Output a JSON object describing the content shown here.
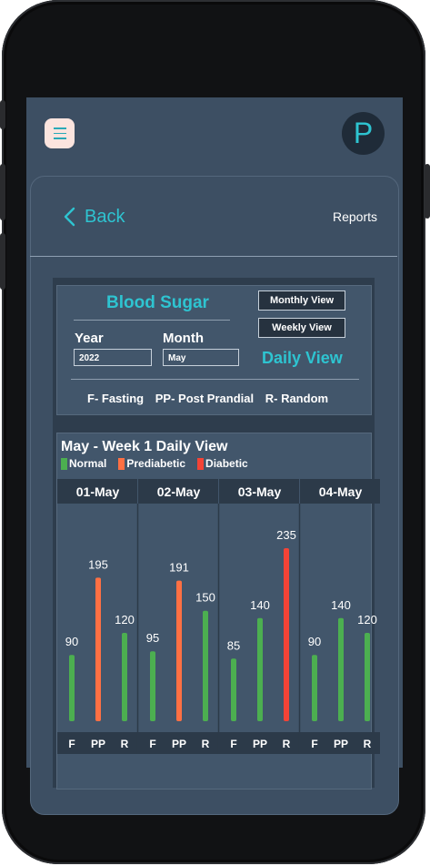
{
  "header": {
    "avatar_letter": "P"
  },
  "nav": {
    "back_label": "Back",
    "reports_label": "Reports"
  },
  "blood_sugar": {
    "title": "Blood Sugar",
    "year_label": "Year",
    "year_value": "2022",
    "month_label": "Month",
    "month_value": "May",
    "monthly_view": "Monthly View",
    "weekly_view": "Weekly View",
    "daily_view": "Daily View",
    "abbr": [
      "F- Fasting",
      "PP- Post Prandial",
      "R- Random"
    ]
  },
  "colors": {
    "normal": "#4caf50",
    "prediabetic": "#ff7043",
    "diabetic": "#f44336",
    "accent": "#2ec4d1"
  },
  "chart_data": {
    "type": "bar",
    "title": "May - Week 1 Daily View",
    "legend": [
      {
        "name": "Normal",
        "color": "#4caf50"
      },
      {
        "name": "Prediabetic",
        "color": "#ff7043"
      },
      {
        "name": "Diabetic",
        "color": "#f44336"
      }
    ],
    "days": [
      {
        "label": "01-May",
        "bars": [
          {
            "code": "F",
            "value": 90,
            "status": "Normal"
          },
          {
            "code": "PP",
            "value": 195,
            "status": "Prediabetic"
          },
          {
            "code": "R",
            "value": 120,
            "status": "Normal"
          }
        ]
      },
      {
        "label": "02-May",
        "bars": [
          {
            "code": "F",
            "value": 95,
            "status": "Normal"
          },
          {
            "code": "PP",
            "value": 191,
            "status": "Prediabetic"
          },
          {
            "code": "R",
            "value": 150,
            "status": "Normal"
          }
        ]
      },
      {
        "label": "03-May",
        "bars": [
          {
            "code": "F",
            "value": 85,
            "status": "Normal"
          },
          {
            "code": "PP",
            "value": 140,
            "status": "Normal"
          },
          {
            "code": "R",
            "value": 235,
            "status": "Diabetic"
          }
        ]
      },
      {
        "label": "04-May",
        "bars": [
          {
            "code": "F",
            "value": 90,
            "status": "Normal"
          },
          {
            "code": "PP",
            "value": 140,
            "status": "Normal"
          },
          {
            "code": "R",
            "value": 120,
            "status": "Normal"
          }
        ]
      }
    ],
    "ylim": [
      0,
      250
    ]
  }
}
